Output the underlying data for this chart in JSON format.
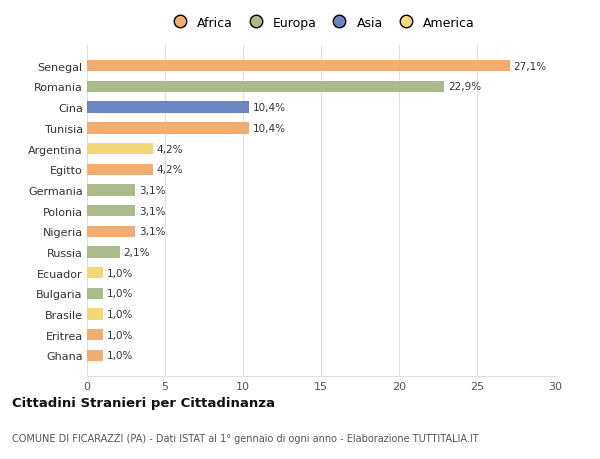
{
  "categories": [
    "Ghana",
    "Eritrea",
    "Brasile",
    "Bulgaria",
    "Ecuador",
    "Russia",
    "Nigeria",
    "Polonia",
    "Germania",
    "Egitto",
    "Argentina",
    "Tunisia",
    "Cina",
    "Romania",
    "Senegal"
  ],
  "values": [
    1.0,
    1.0,
    1.0,
    1.0,
    1.0,
    2.1,
    3.1,
    3.1,
    3.1,
    4.2,
    4.2,
    10.4,
    10.4,
    22.9,
    27.1
  ],
  "continents": [
    "Africa",
    "Africa",
    "America",
    "Europa",
    "America",
    "Europa",
    "Africa",
    "Europa",
    "Europa",
    "Africa",
    "America",
    "Africa",
    "Asia",
    "Europa",
    "Africa"
  ],
  "colors": {
    "Africa": "#F2AE72",
    "Europa": "#AABA8A",
    "Asia": "#6B87C0",
    "America": "#F2D878"
  },
  "bar_colors": [
    "#F2AE72",
    "#F2AE72",
    "#F2D878",
    "#AABA8A",
    "#F2D878",
    "#AABA8A",
    "#F2AE72",
    "#AABA8A",
    "#AABA8A",
    "#F2AE72",
    "#F2D878",
    "#F2AE72",
    "#6B87C0",
    "#AABA8A",
    "#F2AE72"
  ],
  "labels": [
    "1,0%",
    "1,0%",
    "1,0%",
    "1,0%",
    "1,0%",
    "2,1%",
    "3,1%",
    "3,1%",
    "3,1%",
    "4,2%",
    "4,2%",
    "10,4%",
    "10,4%",
    "22,9%",
    "27,1%"
  ],
  "xlim": [
    0,
    30
  ],
  "xticks": [
    0,
    5,
    10,
    15,
    20,
    25,
    30
  ],
  "title": "Cittadini Stranieri per Cittadinanza",
  "subtitle": "COMUNE DI FICARAZZI (PA) - Dati ISTAT al 1° gennaio di ogni anno - Elaborazione TUTTITALIA.IT",
  "legend_order": [
    "Africa",
    "Europa",
    "Asia",
    "America"
  ],
  "background_color": "#ffffff",
  "bar_height": 0.55
}
